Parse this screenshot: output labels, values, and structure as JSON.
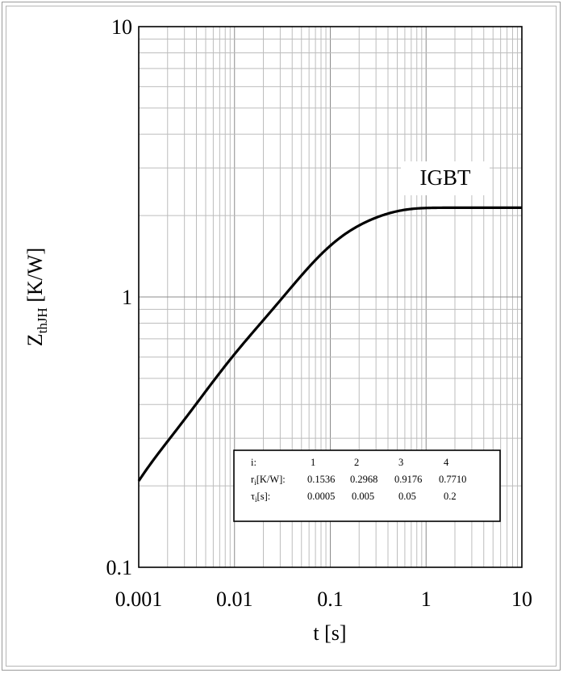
{
  "chart_data": {
    "type": "line",
    "xscale": "log",
    "yscale": "log",
    "xlim": [
      0.001,
      10
    ],
    "ylim": [
      0.1,
      10
    ],
    "x_ticks": [
      "0.001",
      "0.01",
      "0.1",
      "1",
      "10"
    ],
    "y_ticks": [
      "0.1",
      "1",
      "10"
    ],
    "xlabel": "t [s]",
    "ylabel_main": "Z",
    "ylabel_sub": "thJH",
    "ylabel_rest": " [K/W]",
    "grid": true,
    "series": [
      {
        "name": "IGBT",
        "model": "foster",
        "r": [
          0.1536,
          0.2968,
          0.9176,
          0.771
        ],
        "tau": [
          0.0005,
          0.005,
          0.05,
          0.2
        ]
      }
    ],
    "parameter_table": {
      "row_i": {
        "label": "i:",
        "values": [
          "1",
          "2",
          "3",
          "4"
        ]
      },
      "row_r": {
        "label_main": "r",
        "label_sub": "i",
        "label_rest": "[K/W]:",
        "values": [
          "0.1536",
          "0.2968",
          "0.9176",
          "0.7710"
        ]
      },
      "row_tau": {
        "label_main": "τ",
        "label_sub": "i",
        "label_rest": "[s]:",
        "values": [
          "0.0005",
          "0.005",
          "0.05",
          "0.2"
        ]
      }
    }
  }
}
